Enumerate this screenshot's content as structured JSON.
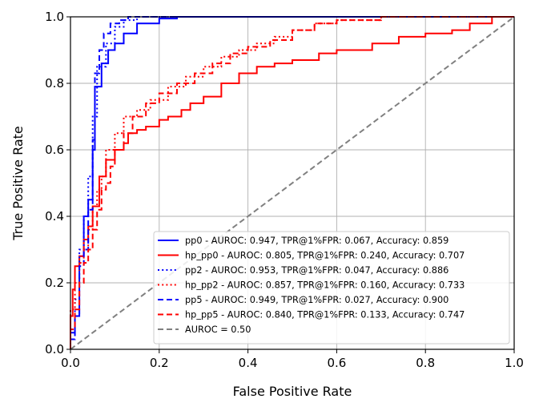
{
  "chart_data": {
    "type": "line",
    "title": "",
    "xlabel": "False Positive Rate",
    "ylabel": "True Positive Rate",
    "xlim": [
      0.0,
      1.0
    ],
    "ylim": [
      0.0,
      1.0
    ],
    "xticks": [
      "0.0",
      "0.2",
      "0.4",
      "0.6",
      "0.8",
      "1.0"
    ],
    "yticks": [
      "0.0",
      "0.2",
      "0.4",
      "0.6",
      "0.8",
      "1.0"
    ],
    "grid": true,
    "legend_position": "lower-right",
    "series": [
      {
        "name": "pp0 - AUROC: 0.947, TPR@1%FPR: 0.067, Accuracy: 0.859",
        "color": "#0000ff",
        "style": "solid",
        "x": [
          0.0,
          0.0,
          0.01,
          0.01,
          0.02,
          0.02,
          0.03,
          0.03,
          0.04,
          0.04,
          0.05,
          0.05,
          0.055,
          0.055,
          0.07,
          0.07,
          0.085,
          0.085,
          0.1,
          0.1,
          0.12,
          0.12,
          0.15,
          0.15,
          0.2,
          0.2,
          0.24,
          0.24,
          1.0
        ],
        "y": [
          0.0,
          0.05,
          0.05,
          0.1,
          0.1,
          0.28,
          0.28,
          0.4,
          0.4,
          0.45,
          0.45,
          0.6,
          0.6,
          0.79,
          0.79,
          0.86,
          0.86,
          0.9,
          0.9,
          0.92,
          0.92,
          0.95,
          0.95,
          0.98,
          0.98,
          0.995,
          0.995,
          1.0,
          1.0
        ]
      },
      {
        "name": "hp_pp0 - AUROC: 0.805, TPR@1%FPR: 0.240, Accuracy: 0.707",
        "color": "#ff0000",
        "style": "solid",
        "x": [
          0.0,
          0.0,
          0.005,
          0.005,
          0.01,
          0.01,
          0.02,
          0.02,
          0.03,
          0.03,
          0.04,
          0.04,
          0.05,
          0.05,
          0.065,
          0.065,
          0.08,
          0.08,
          0.1,
          0.1,
          0.12,
          0.12,
          0.13,
          0.13,
          0.15,
          0.15,
          0.17,
          0.17,
          0.2,
          0.2,
          0.22,
          0.22,
          0.25,
          0.25,
          0.27,
          0.27,
          0.3,
          0.3,
          0.34,
          0.34,
          0.38,
          0.38,
          0.42,
          0.42,
          0.46,
          0.46,
          0.5,
          0.5,
          0.56,
          0.56,
          0.6,
          0.6,
          0.68,
          0.68,
          0.74,
          0.74,
          0.8,
          0.8,
          0.86,
          0.86,
          0.9,
          0.9,
          0.95,
          0.95,
          1.0
        ],
        "y": [
          0.0,
          0.1,
          0.1,
          0.18,
          0.18,
          0.25,
          0.25,
          0.28,
          0.28,
          0.33,
          0.33,
          0.37,
          0.37,
          0.43,
          0.43,
          0.52,
          0.52,
          0.57,
          0.57,
          0.6,
          0.6,
          0.62,
          0.62,
          0.65,
          0.65,
          0.66,
          0.66,
          0.67,
          0.67,
          0.69,
          0.69,
          0.7,
          0.7,
          0.72,
          0.72,
          0.74,
          0.74,
          0.76,
          0.76,
          0.8,
          0.8,
          0.83,
          0.83,
          0.85,
          0.85,
          0.86,
          0.86,
          0.87,
          0.87,
          0.89,
          0.89,
          0.9,
          0.9,
          0.92,
          0.92,
          0.94,
          0.94,
          0.95,
          0.95,
          0.96,
          0.96,
          0.98,
          0.98,
          1.0,
          1.0
        ]
      },
      {
        "name": "pp2 - AUROC: 0.953, TPR@1%FPR: 0.047, Accuracy: 0.886",
        "color": "#0000ff",
        "style": "dotted",
        "x": [
          0.0,
          0.0,
          0.01,
          0.01,
          0.02,
          0.02,
          0.03,
          0.03,
          0.04,
          0.04,
          0.05,
          0.05,
          0.06,
          0.06,
          0.08,
          0.08,
          0.1,
          0.1,
          0.12,
          0.12,
          0.15,
          0.15,
          1.0
        ],
        "y": [
          0.0,
          0.06,
          0.06,
          0.15,
          0.15,
          0.3,
          0.3,
          0.4,
          0.4,
          0.52,
          0.52,
          0.7,
          0.7,
          0.85,
          0.85,
          0.92,
          0.92,
          0.97,
          0.97,
          0.99,
          0.99,
          1.0,
          1.0
        ]
      },
      {
        "name": "hp_pp2 - AUROC: 0.857, TPR@1%FPR: 0.160, Accuracy: 0.733",
        "color": "#ff0000",
        "style": "dotted",
        "x": [
          0.0,
          0.0,
          0.01,
          0.01,
          0.02,
          0.02,
          0.03,
          0.03,
          0.04,
          0.04,
          0.05,
          0.05,
          0.06,
          0.06,
          0.07,
          0.07,
          0.08,
          0.08,
          0.1,
          0.1,
          0.12,
          0.12,
          0.15,
          0.15,
          0.18,
          0.18,
          0.22,
          0.22,
          0.26,
          0.26,
          0.3,
          0.3,
          0.34,
          0.34,
          0.38,
          0.38,
          0.42,
          0.42,
          0.46,
          0.46,
          0.5,
          0.5,
          0.55,
          0.55,
          0.6,
          0.6,
          0.7,
          0.7,
          1.0
        ],
        "y": [
          0.0,
          0.12,
          0.12,
          0.2,
          0.2,
          0.26,
          0.26,
          0.3,
          0.3,
          0.36,
          0.36,
          0.43,
          0.43,
          0.48,
          0.48,
          0.52,
          0.52,
          0.6,
          0.6,
          0.65,
          0.65,
          0.7,
          0.7,
          0.72,
          0.72,
          0.75,
          0.75,
          0.79,
          0.79,
          0.82,
          0.82,
          0.85,
          0.85,
          0.88,
          0.88,
          0.9,
          0.9,
          0.92,
          0.92,
          0.94,
          0.94,
          0.96,
          0.96,
          0.98,
          0.98,
          0.99,
          0.99,
          1.0,
          1.0
        ]
      },
      {
        "name": "pp5 - AUROC: 0.949, TPR@1%FPR: 0.027, Accuracy: 0.900",
        "color": "#0000ff",
        "style": "dashed",
        "x": [
          0.0,
          0.0,
          0.01,
          0.01,
          0.02,
          0.02,
          0.03,
          0.03,
          0.04,
          0.04,
          0.05,
          0.05,
          0.055,
          0.055,
          0.065,
          0.065,
          0.075,
          0.075,
          0.09,
          0.09,
          0.11,
          0.11,
          0.13,
          0.13,
          1.0
        ],
        "y": [
          0.0,
          0.03,
          0.03,
          0.1,
          0.1,
          0.25,
          0.25,
          0.3,
          0.3,
          0.42,
          0.42,
          0.63,
          0.63,
          0.83,
          0.83,
          0.9,
          0.9,
          0.95,
          0.95,
          0.98,
          0.98,
          0.99,
          0.99,
          1.0,
          1.0
        ]
      },
      {
        "name": "hp_pp5 - AUROC: 0.840, TPR@1%FPR: 0.133, Accuracy: 0.747",
        "color": "#ff0000",
        "style": "dashed",
        "x": [
          0.0,
          0.0,
          0.01,
          0.01,
          0.02,
          0.02,
          0.03,
          0.03,
          0.04,
          0.04,
          0.05,
          0.05,
          0.06,
          0.06,
          0.07,
          0.07,
          0.08,
          0.08,
          0.09,
          0.09,
          0.1,
          0.1,
          0.12,
          0.12,
          0.14,
          0.14,
          0.17,
          0.17,
          0.2,
          0.2,
          0.24,
          0.24,
          0.28,
          0.28,
          0.32,
          0.32,
          0.36,
          0.36,
          0.4,
          0.4,
          0.45,
          0.45,
          0.5,
          0.5,
          0.55,
          0.55,
          0.6,
          0.6,
          0.7,
          0.7,
          0.8,
          0.8,
          0.9,
          0.9,
          1.0
        ],
        "y": [
          0.0,
          0.06,
          0.06,
          0.12,
          0.12,
          0.2,
          0.2,
          0.26,
          0.26,
          0.3,
          0.3,
          0.36,
          0.36,
          0.42,
          0.42,
          0.48,
          0.48,
          0.5,
          0.5,
          0.55,
          0.55,
          0.6,
          0.6,
          0.65,
          0.65,
          0.7,
          0.7,
          0.74,
          0.74,
          0.77,
          0.77,
          0.8,
          0.8,
          0.83,
          0.83,
          0.86,
          0.86,
          0.89,
          0.89,
          0.91,
          0.91,
          0.93,
          0.93,
          0.96,
          0.96,
          0.98,
          0.98,
          0.99,
          0.99,
          1.0,
          1.0,
          1.0,
          1.0,
          1.0,
          1.0
        ]
      },
      {
        "name": "AUROC = 0.50",
        "color": "#808080",
        "style": "dashed",
        "x": [
          0.0,
          1.0
        ],
        "y": [
          0.0,
          1.0
        ]
      }
    ]
  }
}
